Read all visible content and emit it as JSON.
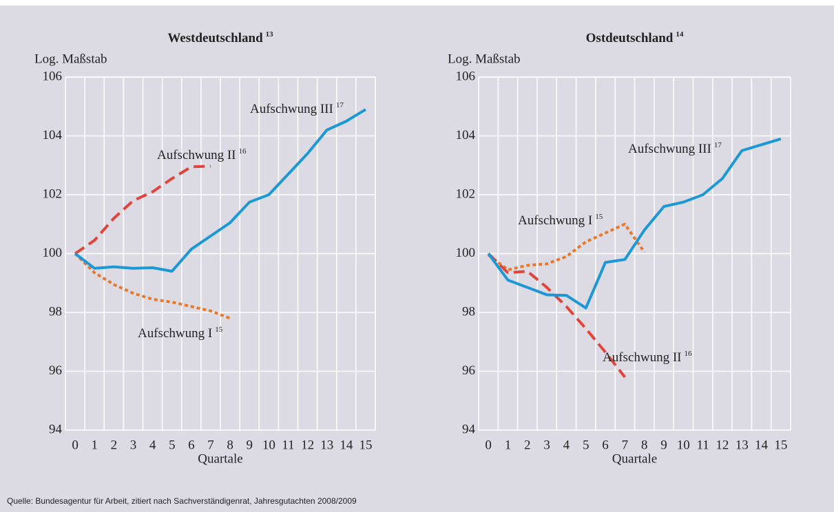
{
  "charts": [
    {
      "type": "line",
      "title": "Westdeutschland",
      "title_note": "13",
      "ylabel": "Log. Maßstab",
      "xlabel": "Quartale",
      "x": [
        0,
        1,
        2,
        3,
        4,
        5,
        6,
        7,
        8,
        9,
        10,
        11,
        12,
        13,
        14,
        15
      ],
      "xticks": [
        0,
        1,
        2,
        3,
        4,
        5,
        6,
        7,
        8,
        9,
        10,
        11,
        12,
        13,
        14,
        15
      ],
      "xlim": [
        -0.5,
        15.5
      ],
      "ylim": [
        94,
        106
      ],
      "yticks": [
        94,
        96,
        98,
        100,
        102,
        104,
        106
      ],
      "grid": true,
      "series": [
        {
          "name": "Aufschwung I",
          "note": "15",
          "color": "#e8782a",
          "style": "dotted",
          "values": [
            100,
            99.35,
            98.95,
            98.65,
            98.45,
            98.35,
            98.2,
            98.05,
            97.8,
            null,
            null,
            null,
            null,
            null,
            null,
            null
          ]
        },
        {
          "name": "Aufschwung II",
          "note": "16",
          "color": "#e0443a",
          "style": "dashed",
          "values": [
            100,
            100.45,
            101.2,
            101.8,
            102.1,
            102.55,
            102.95,
            102.97,
            null,
            null,
            null,
            null,
            null,
            null,
            null,
            null
          ]
        },
        {
          "name": "Aufschwung III",
          "note": "17",
          "color": "#1b98d5",
          "style": "solid",
          "values": [
            100,
            99.5,
            99.55,
            99.5,
            99.52,
            99.4,
            100.15,
            100.6,
            101.05,
            101.75,
            102.0,
            102.7,
            103.4,
            104.2,
            104.5,
            104.9
          ]
        }
      ]
    },
    {
      "type": "line",
      "title": "Ostdeutschland",
      "title_note": "14",
      "ylabel": "Log. Maßstab",
      "xlabel": "Quartale",
      "x": [
        0,
        1,
        2,
        3,
        4,
        5,
        6,
        7,
        8,
        9,
        10,
        11,
        12,
        13,
        14,
        15
      ],
      "xticks": [
        0,
        1,
        2,
        3,
        4,
        5,
        6,
        7,
        8,
        9,
        10,
        11,
        12,
        13,
        14,
        15
      ],
      "xlim": [
        -0.5,
        15.5
      ],
      "ylim": [
        94,
        106
      ],
      "yticks": [
        94,
        96,
        98,
        100,
        102,
        104,
        106
      ],
      "grid": true,
      "series": [
        {
          "name": "Aufschwung I",
          "note": "15",
          "color": "#e8782a",
          "style": "dotted",
          "values": [
            99.95,
            99.45,
            99.6,
            99.65,
            99.9,
            100.4,
            100.7,
            101.0,
            100.05,
            null,
            null,
            null,
            null,
            null,
            null,
            null
          ]
        },
        {
          "name": "Aufschwung II",
          "note": "16",
          "color": "#e0443a",
          "style": "dashed",
          "values": [
            100,
            99.35,
            99.4,
            98.85,
            98.2,
            97.45,
            96.65,
            95.8,
            null,
            null,
            null,
            null,
            null,
            null,
            null,
            null
          ]
        },
        {
          "name": "Aufschwung III",
          "note": "17",
          "color": "#1b98d5",
          "style": "solid",
          "values": [
            100,
            99.1,
            98.85,
            98.6,
            98.58,
            98.15,
            99.7,
            99.8,
            100.8,
            101.6,
            101.75,
            102.0,
            102.55,
            103.5,
            103.7,
            103.9
          ]
        }
      ]
    }
  ],
  "source": "Quelle: Bundesagentur für Arbeit, zitiert nach Sachverständigenrat, Jahresgutachten 2008/2009"
}
